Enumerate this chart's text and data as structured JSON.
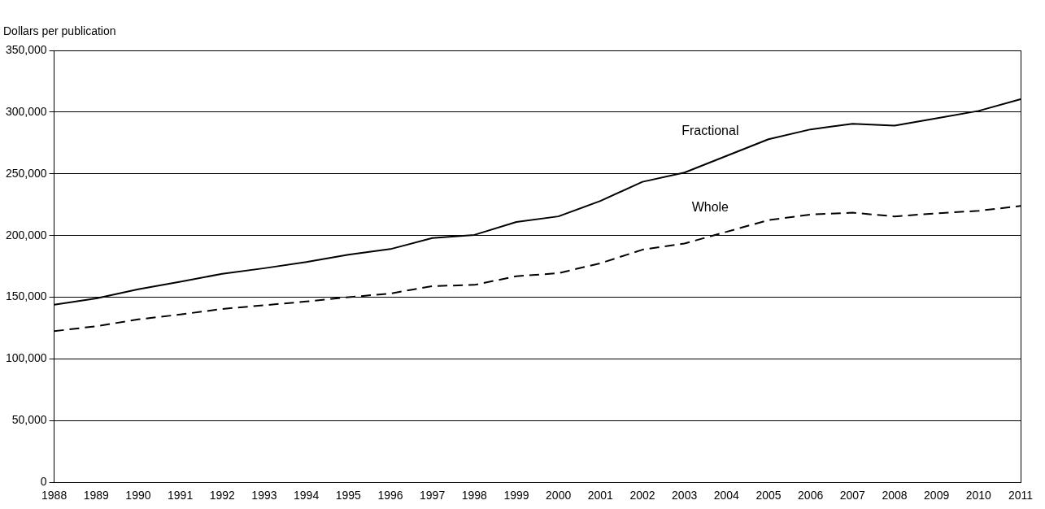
{
  "chart_data": {
    "type": "line",
    "ylabel": "Dollars per publication",
    "categories": [
      "1988",
      "1989",
      "1990",
      "1991",
      "1992",
      "1993",
      "1994",
      "1995",
      "1996",
      "1997",
      "1998",
      "1999",
      "2000",
      "2001",
      "2002",
      "2003",
      "2004",
      "2005",
      "2006",
      "2007",
      "2008",
      "2009",
      "2010",
      "2011"
    ],
    "series": [
      {
        "name": "Fractional",
        "color": "#000000",
        "line_style": "solid",
        "values": [
          144000,
          149000,
          156500,
          162500,
          169000,
          173500,
          178500,
          184500,
          189000,
          198000,
          200500,
          211000,
          215500,
          228000,
          243500,
          251000,
          264500,
          278000,
          286000,
          290500,
          289000,
          295000,
          301000,
          310500
        ]
      },
      {
        "name": "Whole",
        "color": "#000000",
        "line_style": "dashed",
        "values": [
          122500,
          126500,
          132000,
          136000,
          140500,
          143500,
          146500,
          150000,
          153000,
          159000,
          160000,
          167000,
          169500,
          177500,
          188500,
          193500,
          203000,
          212500,
          217000,
          218500,
          215500,
          218000,
          220000,
          224000
        ]
      }
    ],
    "ylim": [
      0,
      350000
    ],
    "yticks": [
      {
        "value": 0,
        "label": "0"
      },
      {
        "value": 50000,
        "label": "50,000"
      },
      {
        "value": 100000,
        "label": "100,000"
      },
      {
        "value": 150000,
        "label": "150,000"
      },
      {
        "value": 200000,
        "label": "200,000"
      },
      {
        "value": 250000,
        "label": "250,000"
      },
      {
        "value": 300000,
        "label": "300,000"
      },
      {
        "value": 350000,
        "label": "350,000"
      }
    ],
    "grid": "y",
    "marker": "none",
    "legend": false
  }
}
